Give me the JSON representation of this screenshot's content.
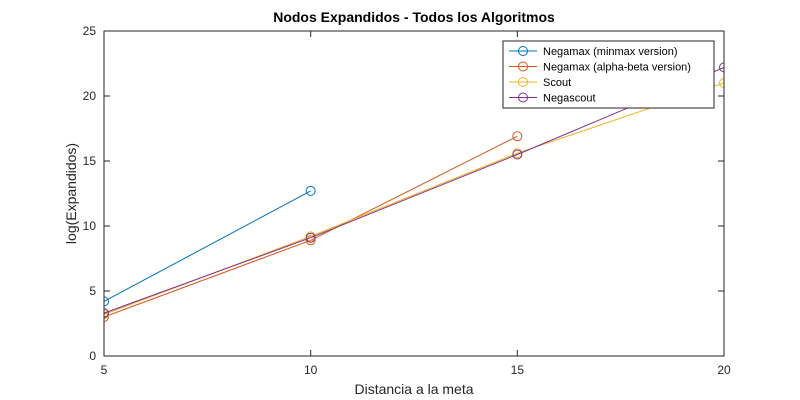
{
  "chart_data": {
    "type": "line",
    "title": "Nodos Expandidos - Todos los Algoritmos",
    "xlabel": "Distancia a la meta",
    "ylabel": "log(Expandidos)",
    "xlim": [
      5,
      20
    ],
    "ylim": [
      0,
      25
    ],
    "xticks": [
      5,
      10,
      15,
      20
    ],
    "yticks": [
      0,
      5,
      10,
      15,
      20,
      25
    ],
    "grid": false,
    "legend_position": "top-right",
    "series": [
      {
        "name": "Negamax (minmax version)",
        "color": "#0072BD",
        "x": [
          5,
          10
        ],
        "y": [
          4.2,
          12.7
        ]
      },
      {
        "name": "Negamax (alpha-beta version)",
        "color": "#D95319",
        "x": [
          5,
          10,
          15
        ],
        "y": [
          3.0,
          8.9,
          16.9
        ]
      },
      {
        "name": "Scout",
        "color": "#EDB120",
        "x": [
          5,
          10,
          15,
          20
        ],
        "y": [
          3.2,
          9.2,
          15.6,
          21.0
        ]
      },
      {
        "name": "Negascout",
        "color": "#7E2F8E",
        "x": [
          5,
          10,
          15,
          20
        ],
        "y": [
          3.3,
          9.1,
          15.5,
          22.2
        ]
      }
    ]
  }
}
